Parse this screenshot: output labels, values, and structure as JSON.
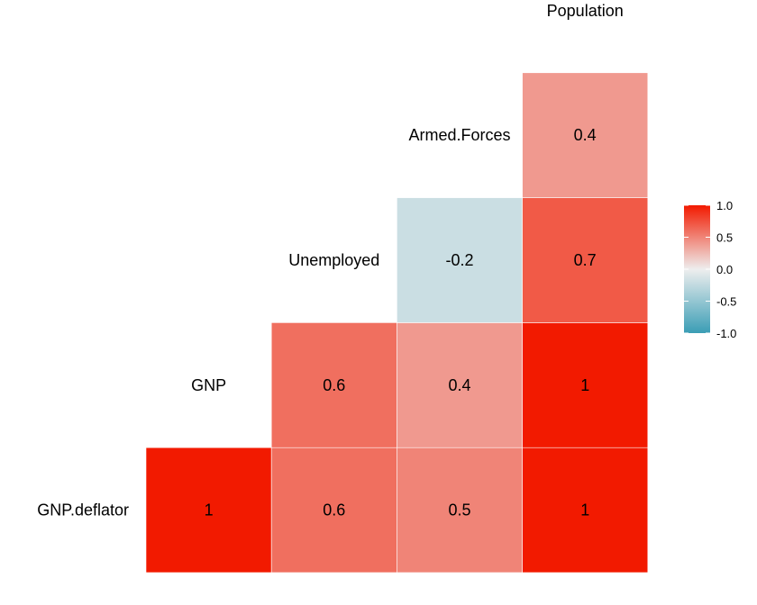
{
  "chart_data": {
    "type": "heatmap",
    "variables": [
      "GNP.deflator",
      "GNP",
      "Unemployed",
      "Armed.Forces",
      "Population"
    ],
    "cells": [
      {
        "row": "GNP.deflator",
        "col": "GNP.deflator",
        "value": 1.0,
        "label": "1"
      },
      {
        "row": "GNP.deflator",
        "col": "Unemployed",
        "value": 0.6,
        "label": "0.6"
      },
      {
        "row": "GNP.deflator",
        "col": "Armed.Forces",
        "value": 0.5,
        "label": "0.5"
      },
      {
        "row": "GNP.deflator",
        "col": "Population",
        "value": 1.0,
        "label": "1"
      },
      {
        "row": "GNP",
        "col": "Unemployed",
        "value": 0.6,
        "label": "0.6"
      },
      {
        "row": "GNP",
        "col": "Armed.Forces",
        "value": 0.4,
        "label": "0.4"
      },
      {
        "row": "GNP",
        "col": "Population",
        "value": 1.0,
        "label": "1"
      },
      {
        "row": "Unemployed",
        "col": "Armed.Forces",
        "value": -0.2,
        "label": "-0.2"
      },
      {
        "row": "Unemployed",
        "col": "Population",
        "value": 0.7,
        "label": "0.7"
      },
      {
        "row": "Armed.Forces",
        "col": "Population",
        "value": 0.4,
        "label": "0.4"
      }
    ],
    "legend": {
      "ticks": [
        "1.0",
        "0.5",
        "0.0",
        "-0.5",
        "-1.0"
      ],
      "range": [
        -1,
        1
      ],
      "placement": "right"
    },
    "colors": {
      "low": "#3A9DB5",
      "mid": "#EEEEEE",
      "high": "#F21A00"
    },
    "grid": false
  }
}
